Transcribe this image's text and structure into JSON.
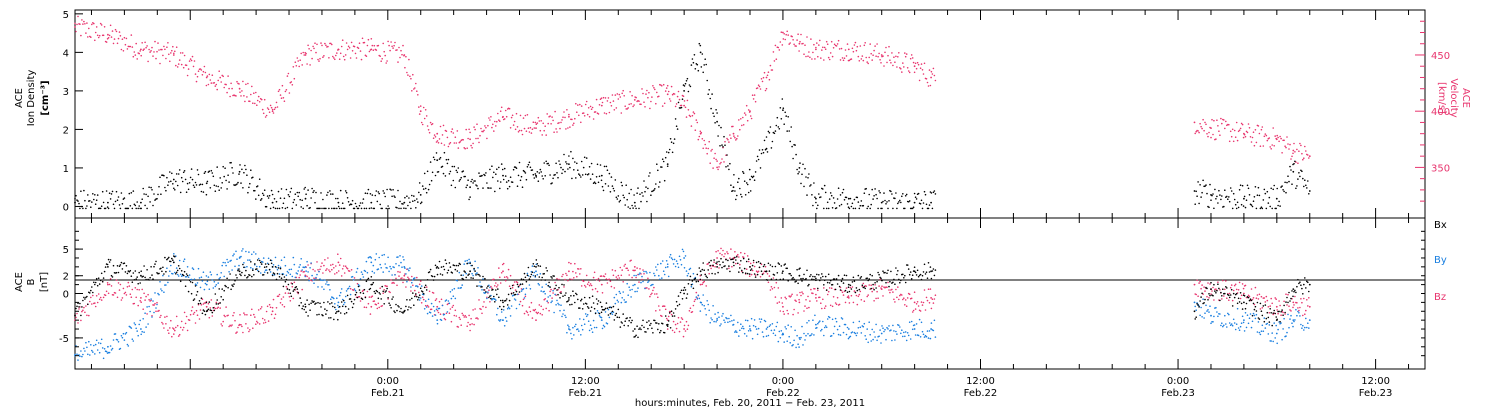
{
  "colors": {
    "density": "#000000",
    "velocity": "#e8356e",
    "bx": "#000000",
    "by": "#1a7fe0",
    "bz": "#e8356e"
  },
  "x_axis": {
    "title": "hours:minutes, Feb. 20, 2011 − Feb. 23, 2011",
    "range_hours": [
      -19,
      63
    ],
    "ticks": [
      {
        "time": "0:00",
        "date": "Feb.21"
      },
      {
        "time": "12:00",
        "date": "Feb.21"
      },
      {
        "time": "0:00",
        "date": "Feb.22"
      },
      {
        "time": "12:00",
        "date": "Feb.22"
      },
      {
        "time": "0:00",
        "date": "Feb.23"
      },
      {
        "time": "12:00",
        "date": "Feb.23"
      }
    ]
  },
  "panel1": {
    "ylabel": [
      "ACE",
      "Ion Density",
      "[cm⁻³]"
    ],
    "y2label": [
      "ACE",
      "Velocity",
      "[km/s]"
    ],
    "yticks": [
      "0",
      "1",
      "2",
      "3",
      "4",
      "5"
    ],
    "y2ticks": [
      "350",
      "400",
      "450"
    ]
  },
  "panel2": {
    "ylabel": [
      "ACE",
      "B",
      "[nT]"
    ],
    "yticks": [
      "5",
      "2",
      "0",
      "-5"
    ],
    "legend": [
      "Bx",
      "By",
      "Bz"
    ]
  },
  "chart_data": [
    {
      "type": "scatter",
      "title": "",
      "xlabel": "hours:minutes, Feb. 20, 2011 − Feb. 23, 2011",
      "ylabel": "ACE Ion Density [cm⁻³]",
      "y2label": "ACE Velocity [km/s]",
      "ylim": [
        -0.3,
        5.1
      ],
      "y2lim": [
        305,
        490
      ],
      "x_units": "hours from Feb.21 0:00",
      "data_gap_hours": [
        33,
        49
      ],
      "series": [
        {
          "name": "Ion Density",
          "axis": "left",
          "x": [
            -19,
            -17,
            -15,
            -13,
            -11,
            -9,
            -7,
            -5,
            -3,
            -1,
            1,
            2,
            3,
            5,
            7,
            9,
            11,
            13,
            15,
            17,
            18,
            19,
            20,
            21,
            22,
            23,
            24,
            25,
            26,
            28,
            30,
            32,
            33,
            49,
            50,
            52,
            54,
            55,
            56
          ],
          "values": [
            0.1,
            0.1,
            0.1,
            0.7,
            0.6,
            0.9,
            0.1,
            0.2,
            0.1,
            0.1,
            0.1,
            0.3,
            1.2,
            0.5,
            0.8,
            0.8,
            1.1,
            0.8,
            0.1,
            1.1,
            3.0,
            4.0,
            2.2,
            0.5,
            0.7,
            1.5,
            2.5,
            1.0,
            0.2,
            0.2,
            0.1,
            0.1,
            0.1,
            0.4,
            0.3,
            0.2,
            0.2,
            0.9,
            0.4
          ]
        },
        {
          "name": "Velocity",
          "axis": "right",
          "x": [
            -19,
            -17,
            -15,
            -13,
            -11,
            -9,
            -7,
            -5,
            -3,
            -1,
            1,
            2,
            3,
            5,
            7,
            9,
            11,
            13,
            15,
            17,
            18,
            19,
            20,
            21,
            22,
            23,
            24,
            25,
            26,
            28,
            30,
            32,
            33,
            49,
            50,
            52,
            54,
            55,
            56
          ],
          "values": [
            475,
            468,
            455,
            450,
            430,
            420,
            400,
            450,
            455,
            455,
            450,
            400,
            380,
            375,
            395,
            385,
            395,
            405,
            410,
            415,
            405,
            380,
            350,
            380,
            400,
            430,
            470,
            460,
            455,
            455,
            450,
            440,
            430,
            390,
            385,
            380,
            375,
            365,
            360
          ]
        }
      ]
    },
    {
      "type": "scatter",
      "title": "",
      "xlabel": "hours:minutes, Feb. 20, 2011 − Feb. 23, 2011",
      "ylabel": "ACE B [nT]",
      "ylim": [
        -8.5,
        8.5
      ],
      "x_units": "hours from Feb.21 0:00",
      "data_gap_hours": [
        33,
        49
      ],
      "series": [
        {
          "name": "Bx",
          "x": [
            -19,
            -17,
            -15,
            -13,
            -11,
            -9,
            -7,
            -5,
            -3,
            -1,
            1,
            3,
            5,
            7,
            9,
            11,
            13,
            15,
            17,
            18,
            19,
            20,
            21,
            22,
            23,
            24,
            25,
            26,
            28,
            30,
            32,
            33,
            49,
            50,
            52,
            54,
            55,
            56
          ],
          "values": [
            -2.5,
            3.0,
            2.0,
            3.5,
            -2.0,
            2.5,
            3.0,
            -1.5,
            -2.0,
            1.0,
            -2.0,
            3.0,
            2.5,
            -1.0,
            3.0,
            -0.5,
            -1.5,
            -4.0,
            -3.5,
            0.0,
            2.5,
            3.0,
            3.5,
            3.0,
            2.5,
            2.5,
            2.0,
            1.5,
            1.0,
            1.5,
            2.5,
            2.5,
            -2.0,
            0.5,
            -1.0,
            -3.0,
            0.5,
            1.0
          ]
        },
        {
          "name": "By",
          "x": [
            -19,
            -17,
            -15,
            -13,
            -11,
            -9,
            -7,
            -5,
            -3,
            -1,
            1,
            3,
            5,
            7,
            9,
            11,
            13,
            15,
            17,
            18,
            19,
            20,
            21,
            22,
            23,
            24,
            25,
            26,
            28,
            30,
            32,
            33,
            49,
            50,
            52,
            54,
            55,
            56
          ],
          "values": [
            -7.0,
            -6.0,
            -4.0,
            3.5,
            1.0,
            4.0,
            3.0,
            3.0,
            -1.0,
            3.5,
            3.0,
            -3.0,
            3.5,
            -3.0,
            2.5,
            -4.0,
            -3.0,
            1.0,
            3.0,
            4.0,
            -1.0,
            -3.0,
            -3.5,
            -4.0,
            -4.0,
            -4.5,
            -5.0,
            -3.5,
            -4.0,
            -4.5,
            -4.0,
            -4.0,
            -1.0,
            -2.5,
            -3.0,
            -4.5,
            -3.0,
            -3.0
          ]
        },
        {
          "name": "Bz",
          "x": [
            -19,
            -17,
            -15,
            -13,
            -11,
            -9,
            -7,
            -5,
            -3,
            -1,
            1,
            3,
            5,
            7,
            9,
            11,
            13,
            15,
            17,
            18,
            19,
            20,
            21,
            22,
            23,
            24,
            25,
            26,
            28,
            30,
            32,
            33,
            49,
            50,
            52,
            54,
            55,
            56
          ],
          "values": [
            -3.0,
            1.0,
            -0.5,
            -4.0,
            -1.5,
            -3.5,
            -2.0,
            2.0,
            3.5,
            -1.5,
            2.0,
            -1.5,
            -3.5,
            2.5,
            -3.0,
            2.5,
            1.0,
            3.0,
            -3.0,
            -4.0,
            1.0,
            4.0,
            4.0,
            3.0,
            2.5,
            -1.5,
            -1.0,
            -0.5,
            -0.5,
            0.5,
            -1.0,
            -0.5,
            1.0,
            0.5,
            0.0,
            -1.5,
            -1.0,
            -1.5
          ]
        }
      ]
    }
  ]
}
